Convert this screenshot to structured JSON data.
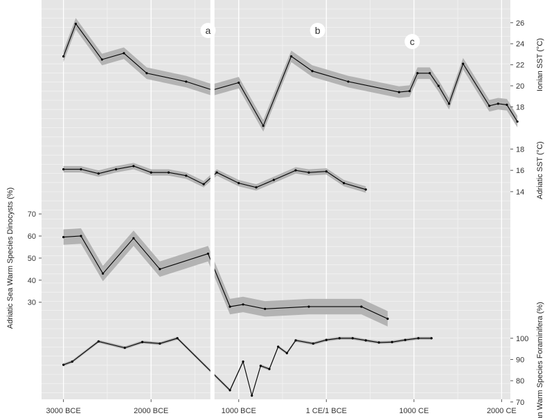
{
  "chart_data": {
    "type": "line",
    "x_axis": {
      "unit": "year",
      "range": [
        -3250,
        2100
      ],
      "ticks": [
        -3000,
        -2000,
        -1000,
        0,
        1000,
        2000
      ],
      "tick_labels": [
        "3000 BCE",
        "2000 BCE",
        "1000 BCE",
        "1 CE/1 BCE",
        "1000 CE",
        "2000 CE"
      ]
    },
    "markers": [
      {
        "label": "a",
        "x": -1350
      },
      {
        "label": "b",
        "x": -100
      },
      {
        "label": "c",
        "x": 980
      }
    ],
    "highlight_line_x": -1300,
    "colors": {
      "panel": "#e5e5e5",
      "grid_major": "#ffffff",
      "band": "#b3b3b3",
      "line": "#000000",
      "highlight": "#ffffff"
    },
    "series": [
      {
        "axis_label": "Ionian SST (°C)",
        "axis_side": "right",
        "y_range": [
          15,
          27.5
        ],
        "y_ticks": [
          18,
          20,
          22,
          24,
          26
        ],
        "band": 0.55,
        "points": [
          [
            -3000,
            22.8
          ],
          [
            -2860,
            25.9
          ],
          [
            -2560,
            22.5
          ],
          [
            -2310,
            23.1
          ],
          [
            -2050,
            21.2
          ],
          [
            -1600,
            20.4
          ],
          [
            -1300,
            19.6
          ],
          [
            -1000,
            20.3
          ],
          [
            -720,
            16.2
          ],
          [
            -400,
            22.8
          ],
          [
            -160,
            21.4
          ],
          [
            250,
            20.4
          ],
          [
            830,
            19.4
          ],
          [
            950,
            19.5
          ],
          [
            1040,
            21.2
          ],
          [
            1180,
            21.2
          ],
          [
            1280,
            20.0
          ],
          [
            1400,
            18.3
          ],
          [
            1560,
            22.1
          ],
          [
            1860,
            18.1
          ],
          [
            1960,
            18.3
          ],
          [
            2060,
            18.2
          ],
          [
            2180,
            16.6
          ]
        ]
      },
      {
        "axis_label": "Adriatic SST (°C)",
        "axis_side": "right",
        "y_range": [
          12.5,
          19
        ],
        "y_ticks": [
          14,
          16,
          18
        ],
        "band": 0.3,
        "points": [
          [
            -3000,
            16.1
          ],
          [
            -2800,
            16.1
          ],
          [
            -2600,
            15.7
          ],
          [
            -2400,
            16.1
          ],
          [
            -2200,
            16.4
          ],
          [
            -2000,
            15.8
          ],
          [
            -1800,
            15.8
          ],
          [
            -1600,
            15.5
          ],
          [
            -1400,
            14.7
          ],
          [
            -1250,
            15.8
          ],
          [
            -1000,
            14.8
          ],
          [
            -800,
            14.4
          ],
          [
            -600,
            15.1
          ],
          [
            -350,
            16.0
          ],
          [
            -200,
            15.8
          ],
          [
            0,
            15.9
          ],
          [
            200,
            14.8
          ],
          [
            450,
            14.2
          ]
        ]
      },
      {
        "axis_label": "Adriatic Sea Warm Species Dinocysts (%)",
        "axis_side": "left",
        "y_range": [
          18,
          76
        ],
        "y_ticks": [
          30,
          40,
          50,
          60,
          70
        ],
        "band": 3.5,
        "points": [
          [
            -3000,
            59.5
          ],
          [
            -2800,
            60
          ],
          [
            -2550,
            43
          ],
          [
            -2200,
            59
          ],
          [
            -1900,
            45
          ],
          [
            -1350,
            52
          ],
          [
            -1100,
            28
          ],
          [
            -950,
            29
          ],
          [
            -700,
            27
          ],
          [
            -200,
            28
          ],
          [
            400,
            28
          ],
          [
            700,
            22.5
          ]
        ]
      },
      {
        "axis_label": "Aegean Warm Species Foraminifera (%)",
        "axis_side": "right",
        "y_range": [
          67,
          111
        ],
        "y_ticks": [
          70,
          80,
          90,
          100
        ],
        "band": 0.7,
        "points": [
          [
            -3000,
            87.5
          ],
          [
            -2900,
            89
          ],
          [
            -2600,
            98.5
          ],
          [
            -2300,
            95.5
          ],
          [
            -2100,
            98.2
          ],
          [
            -1900,
            97.5
          ],
          [
            -1700,
            100
          ],
          [
            -1100,
            75.5
          ],
          [
            -950,
            89
          ],
          [
            -850,
            73
          ],
          [
            -750,
            87
          ],
          [
            -650,
            85.5
          ],
          [
            -550,
            96
          ],
          [
            -450,
            93
          ],
          [
            -350,
            99
          ],
          [
            -150,
            97.5
          ],
          [
            0,
            99.2
          ],
          [
            150,
            100
          ],
          [
            300,
            100
          ],
          [
            450,
            99
          ],
          [
            600,
            98
          ],
          [
            750,
            98.2
          ],
          [
            900,
            99.2
          ],
          [
            1050,
            100
          ],
          [
            1200,
            100
          ]
        ]
      }
    ]
  }
}
